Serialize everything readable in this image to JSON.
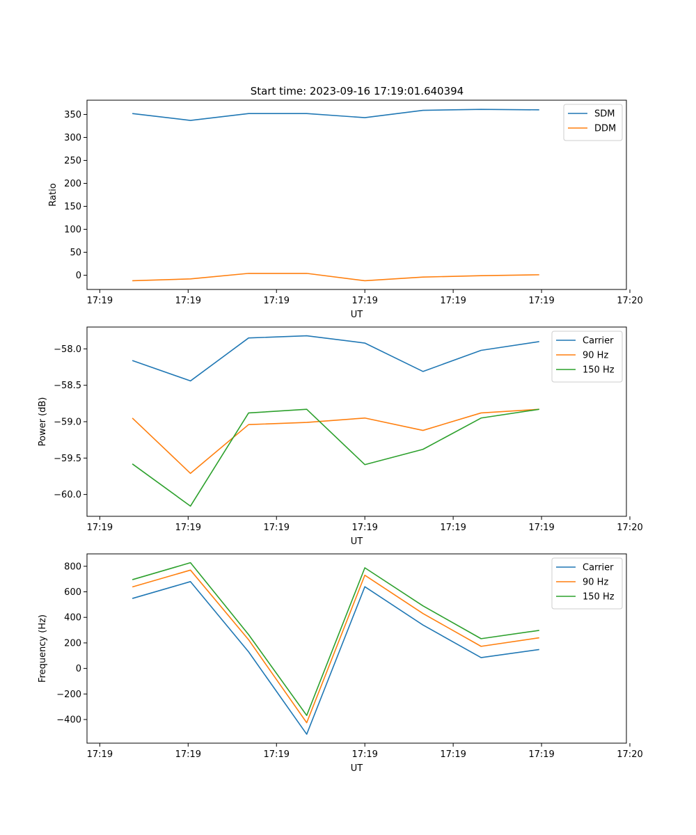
{
  "title": "Start time: 2023-09-16 17:19:01.640394",
  "colors": {
    "blue": "#1f77b4",
    "orange": "#ff7f0e",
    "green": "#2ca02c"
  },
  "chart_data": [
    {
      "type": "line",
      "title": "Start time: 2023-09-16 17:19:01.640394",
      "xlabel": "UT",
      "ylabel": "Ratio",
      "x": [
        1,
        2,
        3,
        4,
        5,
        6,
        7,
        8
      ],
      "xlim": [
        0.22,
        9.5
      ],
      "ylim": [
        -31,
        381
      ],
      "yticks": [
        0,
        50,
        100,
        150,
        200,
        250,
        300,
        350
      ],
      "xticks": [
        0.44,
        1.96,
        3.48,
        5.0,
        6.52,
        8.04,
        9.56
      ],
      "xtick_labels": [
        "17:19",
        "17:19",
        "17:19",
        "17:19",
        "17:19",
        "17:19",
        "17:20"
      ],
      "legend_position": "top-right",
      "series": [
        {
          "name": "SDM",
          "color": "#1f77b4",
          "values": [
            352,
            337,
            352,
            352,
            343,
            359,
            361,
            360
          ]
        },
        {
          "name": "DDM",
          "color": "#ff7f0e",
          "values": [
            -12,
            -8,
            4,
            4,
            -12,
            -4,
            -1,
            1
          ]
        }
      ]
    },
    {
      "type": "line",
      "title": "",
      "xlabel": "UT",
      "ylabel": "Power (dB)",
      "x": [
        1,
        2,
        3,
        4,
        5,
        6,
        7,
        8
      ],
      "xlim": [
        0.22,
        9.5
      ],
      "ylim": [
        -60.3,
        -57.7
      ],
      "yticks": [
        -60.0,
        -59.5,
        -59.0,
        -58.5,
        -58.0
      ],
      "ytick_labels": [
        "−60.0",
        "−59.5",
        "−59.0",
        "−58.5",
        "−58.0"
      ],
      "xticks": [
        0.44,
        1.96,
        3.48,
        5.0,
        6.52,
        8.04,
        9.56
      ],
      "xtick_labels": [
        "17:19",
        "17:19",
        "17:19",
        "17:19",
        "17:19",
        "17:19",
        "17:20"
      ],
      "legend_position": "top-right",
      "series": [
        {
          "name": "Carrier",
          "color": "#1f77b4",
          "values": [
            -58.16,
            -58.44,
            -57.85,
            -57.82,
            -57.92,
            -58.31,
            -58.02,
            -57.9
          ]
        },
        {
          "name": "90 Hz",
          "color": "#ff7f0e",
          "values": [
            -58.95,
            -59.71,
            -59.04,
            -59.01,
            -58.95,
            -59.12,
            -58.88,
            -58.83
          ]
        },
        {
          "name": "150 Hz",
          "color": "#2ca02c",
          "values": [
            -59.58,
            -60.16,
            -58.88,
            -58.83,
            -59.59,
            -59.38,
            -58.95,
            -58.83
          ]
        }
      ]
    },
    {
      "type": "line",
      "title": "",
      "xlabel": "UT",
      "ylabel": "Frequency (Hz)",
      "x": [
        1,
        2,
        3,
        4,
        5,
        6,
        7,
        8
      ],
      "xlim": [
        0.22,
        9.5
      ],
      "ylim": [
        -585,
        897
      ],
      "yticks": [
        -400,
        -200,
        0,
        200,
        400,
        600,
        800
      ],
      "ytick_labels": [
        "−400",
        "−200",
        "0",
        "200",
        "400",
        "600",
        "800"
      ],
      "xticks": [
        0.44,
        1.96,
        3.48,
        5.0,
        6.52,
        8.04,
        9.56
      ],
      "xtick_labels": [
        "17:19",
        "17:19",
        "17:19",
        "17:19",
        "17:19",
        "17:19",
        "17:20"
      ],
      "legend_position": "top-right",
      "series": [
        {
          "name": "Carrier",
          "color": "#1f77b4",
          "values": [
            548,
            680,
            130,
            -515,
            640,
            340,
            85,
            148
          ]
        },
        {
          "name": "90 Hz",
          "color": "#ff7f0e",
          "values": [
            638,
            770,
            225,
            -425,
            730,
            430,
            173,
            240
          ]
        },
        {
          "name": "150 Hz",
          "color": "#2ca02c",
          "values": [
            695,
            828,
            265,
            -368,
            788,
            490,
            233,
            298
          ]
        }
      ]
    }
  ]
}
